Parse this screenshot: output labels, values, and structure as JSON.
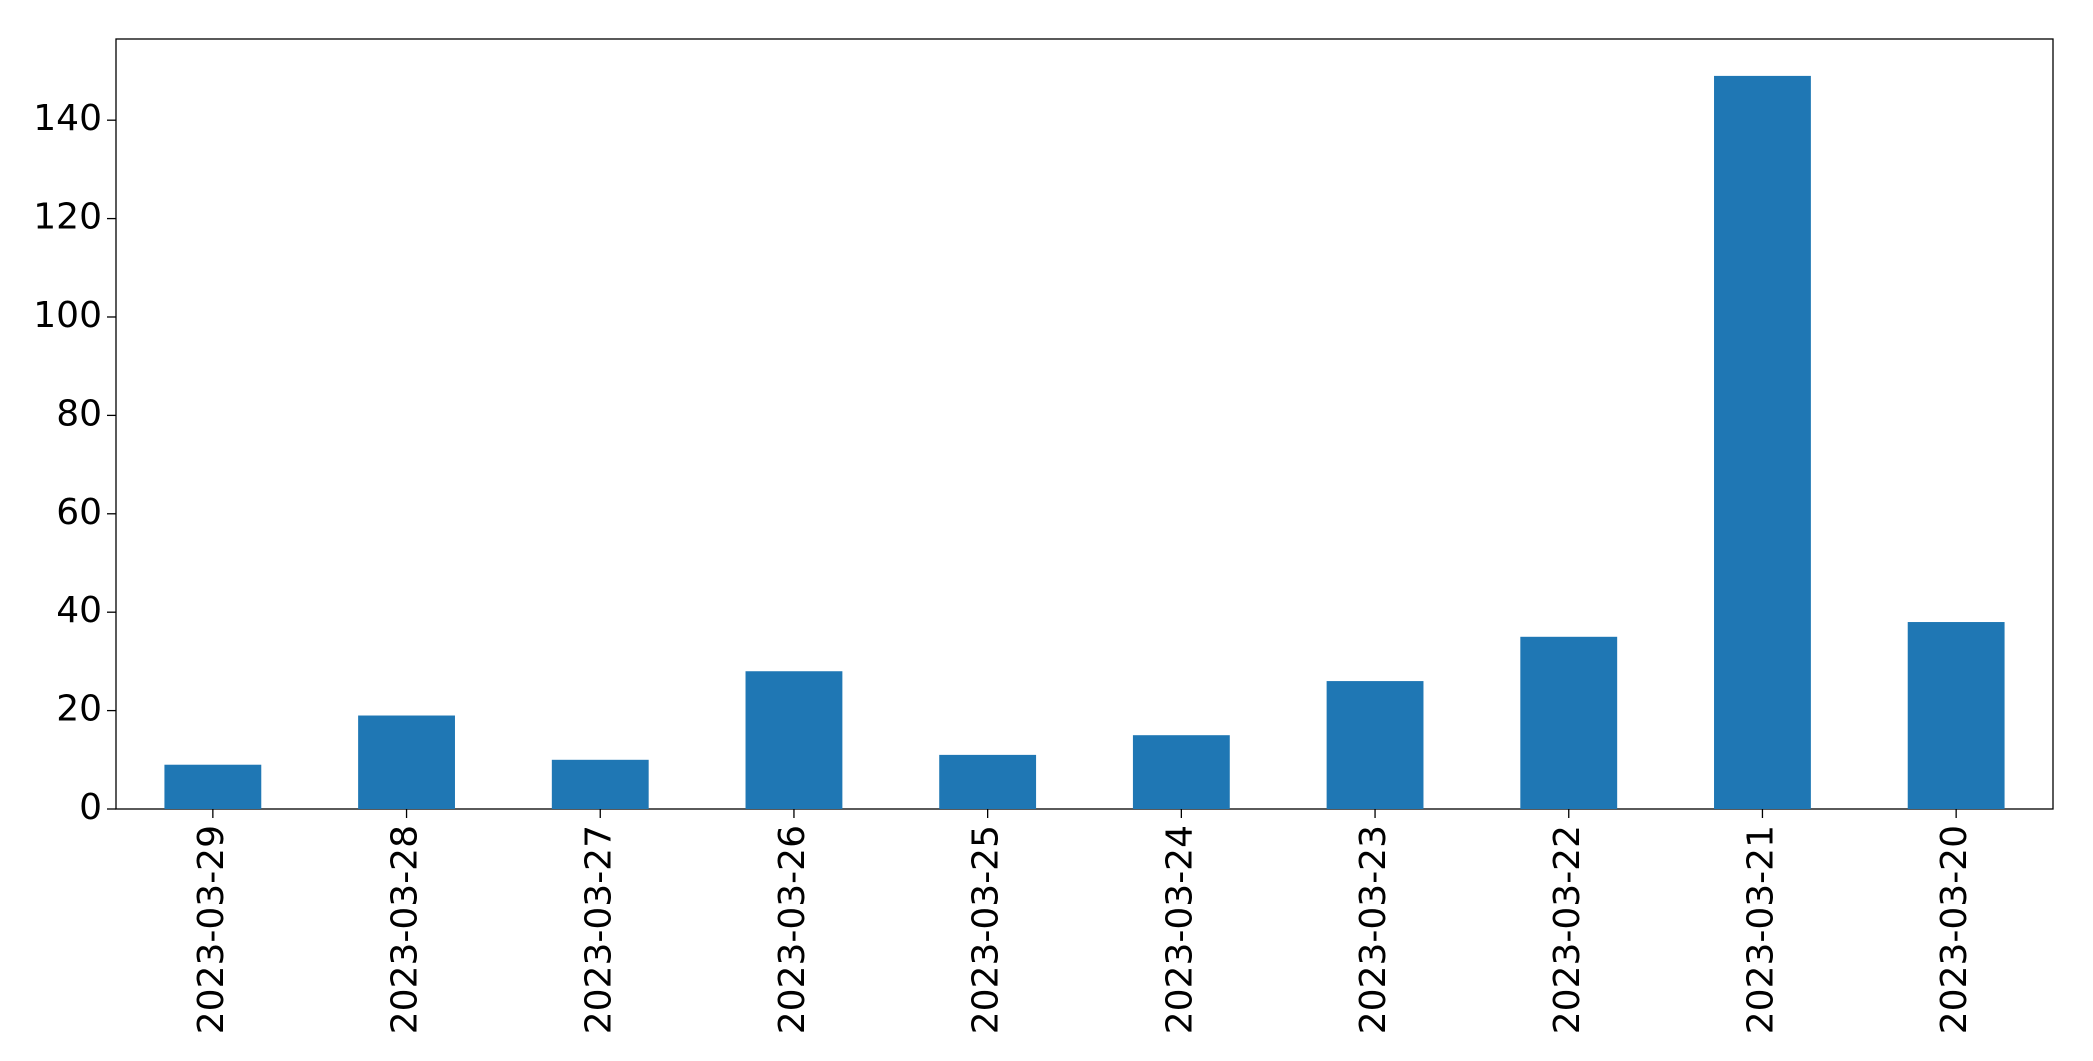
{
  "chart_data": {
    "type": "bar",
    "categories": [
      "2023-03-29",
      "2023-03-28",
      "2023-03-27",
      "2023-03-26",
      "2023-03-25",
      "2023-03-24",
      "2023-03-23",
      "2023-03-22",
      "2023-03-21",
      "2023-03-20"
    ],
    "values": [
      9,
      19,
      10,
      28,
      11,
      15,
      26,
      35,
      149,
      38
    ],
    "color": "#1f77b4",
    "ylim": [
      0,
      156.5
    ],
    "yticks": [
      0,
      20,
      40,
      60,
      80,
      100,
      120,
      140
    ],
    "grid": false
  }
}
